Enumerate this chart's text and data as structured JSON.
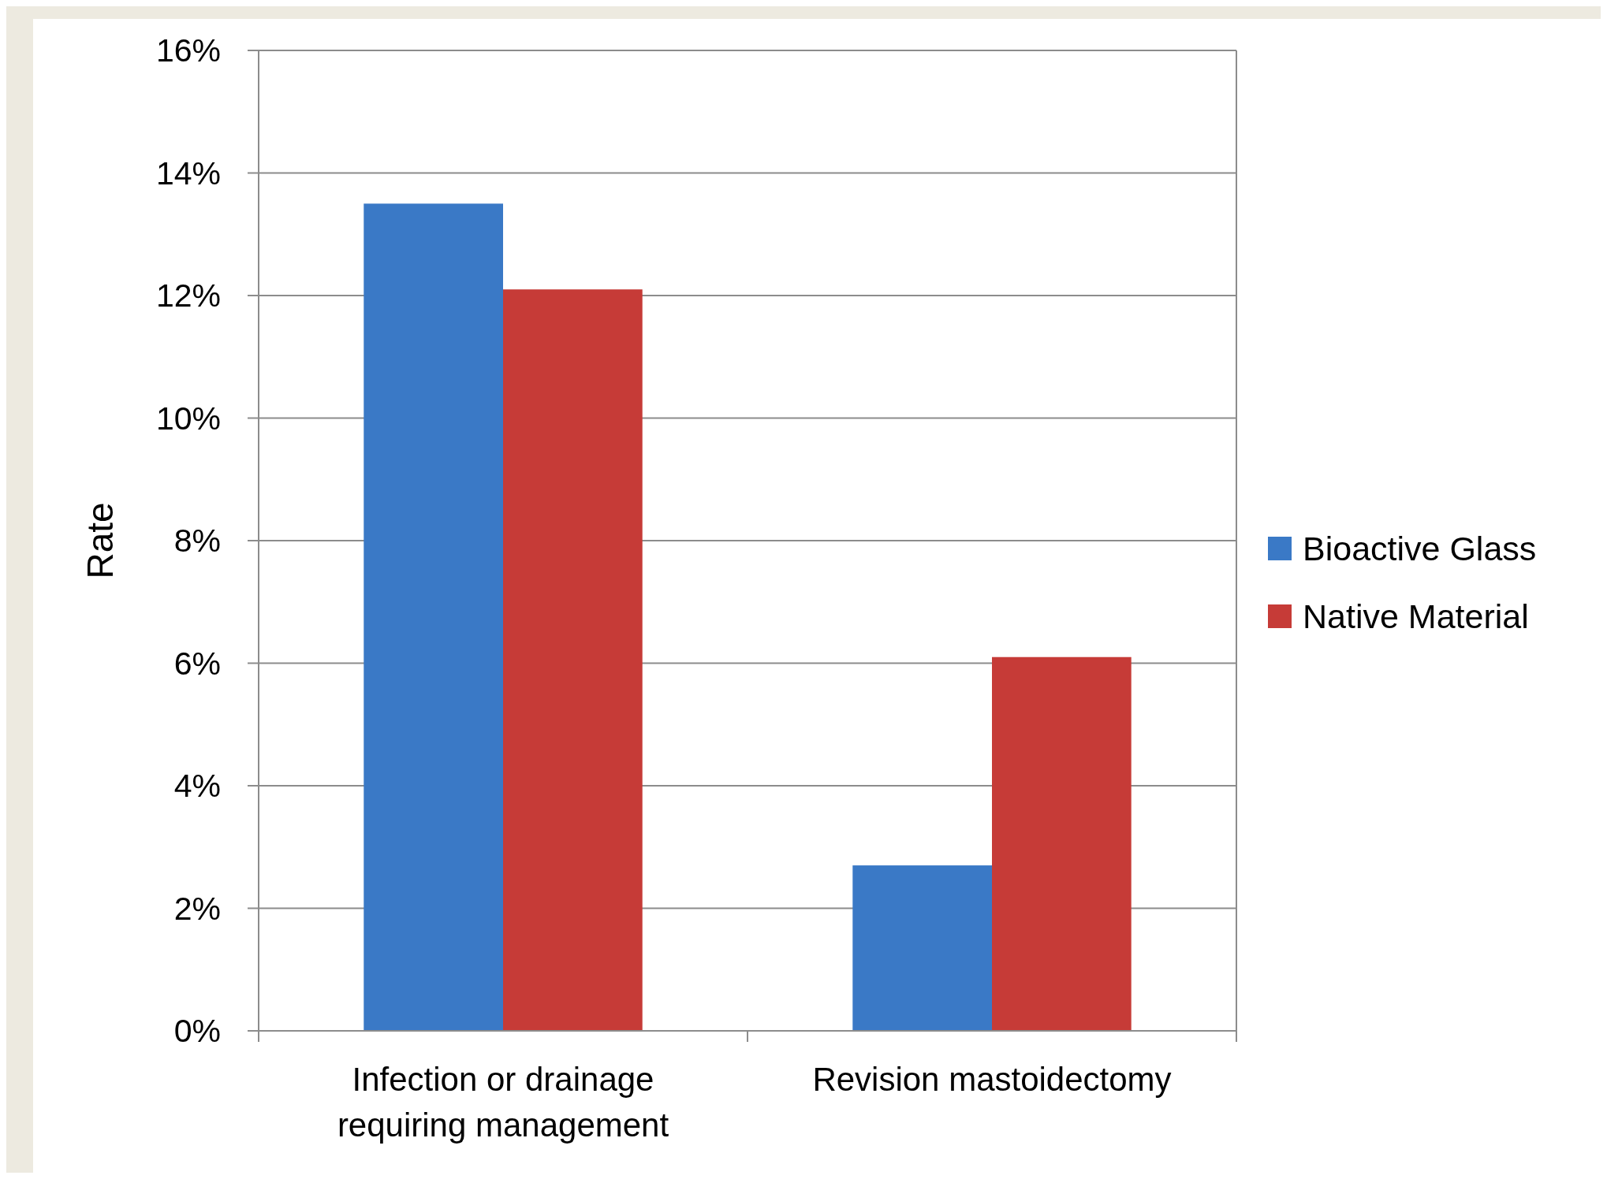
{
  "chart_data": {
    "type": "bar",
    "ylabel": "Rate",
    "categories": [
      "Infection or drainage requiring management",
      "Revision mastoidectomy"
    ],
    "series": [
      {
        "name": "Bioactive Glass",
        "color": "#3a79c6",
        "values": [
          13.5,
          2.7
        ]
      },
      {
        "name": "Native Material",
        "color": "#c63b37",
        "values": [
          12.1,
          6.1
        ]
      }
    ],
    "ylim": [
      0,
      16
    ],
    "yticks": [
      {
        "value": 0,
        "label": "0%"
      },
      {
        "value": 2,
        "label": "2%"
      },
      {
        "value": 4,
        "label": "4%"
      },
      {
        "value": 6,
        "label": "6%"
      },
      {
        "value": 8,
        "label": "8%"
      },
      {
        "value": 10,
        "label": "10%"
      },
      {
        "value": 12,
        "label": "12%"
      },
      {
        "value": 14,
        "label": "14%"
      },
      {
        "value": 16,
        "label": "16%"
      }
    ],
    "grid": "y",
    "legend": "right"
  }
}
